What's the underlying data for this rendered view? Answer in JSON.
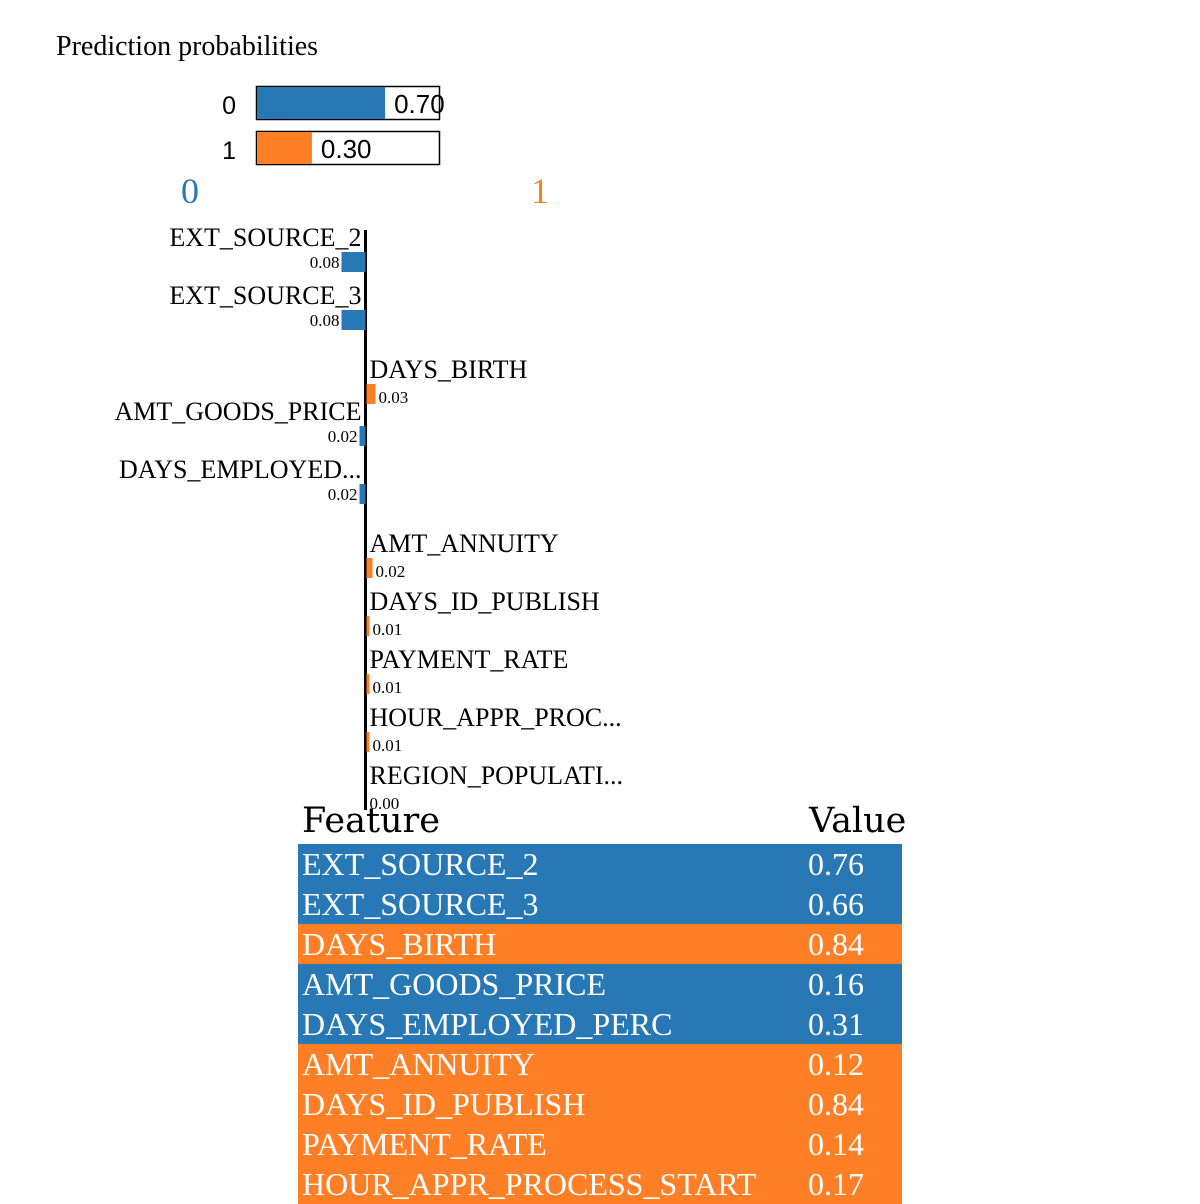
{
  "colors": {
    "class0": "#2878b5",
    "class1": "#ff7f27"
  },
  "chart_data": [
    {
      "type": "bar",
      "title": "Prediction probabilities",
      "categories": [
        "0",
        "1"
      ],
      "values": [
        0.7,
        0.3
      ],
      "value_labels": [
        "0.70",
        "0.30"
      ],
      "xlim": [
        0,
        1
      ]
    },
    {
      "type": "bar",
      "orientation": "horizontal",
      "class_labels": {
        "left": "0",
        "right": "1"
      },
      "categories": [
        "EXT_SOURCE_2",
        "EXT_SOURCE_3",
        "DAYS_BIRTH",
        "AMT_GOODS_PRICE",
        "DAYS_EMPLOYED...",
        "AMT_ANNUITY",
        "DAYS_ID_PUBLISH",
        "PAYMENT_RATE",
        "HOUR_APPR_PROC...",
        "REGION_POPULATI..."
      ],
      "values": [
        -0.08,
        -0.08,
        0.03,
        -0.02,
        -0.02,
        0.02,
        0.01,
        0.01,
        0.01,
        0.0
      ],
      "value_labels": [
        "0.08",
        "0.08",
        "0.03",
        "0.02",
        "0.02",
        "0.02",
        "0.01",
        "0.01",
        "0.01",
        "0.00"
      ]
    }
  ],
  "table": {
    "headers": [
      "Feature",
      "Value"
    ],
    "rows": [
      {
        "feature": "EXT_SOURCE_2",
        "value": "0.76",
        "class": 0
      },
      {
        "feature": "EXT_SOURCE_3",
        "value": "0.66",
        "class": 0
      },
      {
        "feature": "DAYS_BIRTH",
        "value": "0.84",
        "class": 1
      },
      {
        "feature": "AMT_GOODS_PRICE",
        "value": "0.16",
        "class": 0
      },
      {
        "feature": "DAYS_EMPLOYED_PERC",
        "value": "0.31",
        "class": 0
      },
      {
        "feature": "AMT_ANNUITY",
        "value": "0.12",
        "class": 1
      },
      {
        "feature": "DAYS_ID_PUBLISH",
        "value": "0.84",
        "class": 1
      },
      {
        "feature": "PAYMENT_RATE",
        "value": "0.14",
        "class": 1
      },
      {
        "feature": "HOUR_APPR_PROCESS_START",
        "value": "0.17",
        "class": 1
      }
    ]
  }
}
